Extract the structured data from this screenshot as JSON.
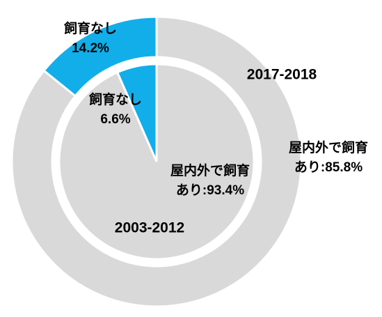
{
  "chart_data": {
    "type": "pie",
    "categories": [
      "飼育なし",
      "屋内外で飼育"
    ],
    "colors": [
      "#12aee9",
      "#d9d9d9"
    ],
    "series": [
      {
        "name": "2003-2012",
        "values": [
          6.6,
          93.4
        ],
        "value_labels": [
          "6.6%",
          "あり:93.4%"
        ]
      },
      {
        "name": "2017-2018",
        "values": [
          14.2,
          85.8
        ],
        "value_labels": [
          "14.2%",
          "あり:85.8%"
        ]
      }
    ]
  }
}
